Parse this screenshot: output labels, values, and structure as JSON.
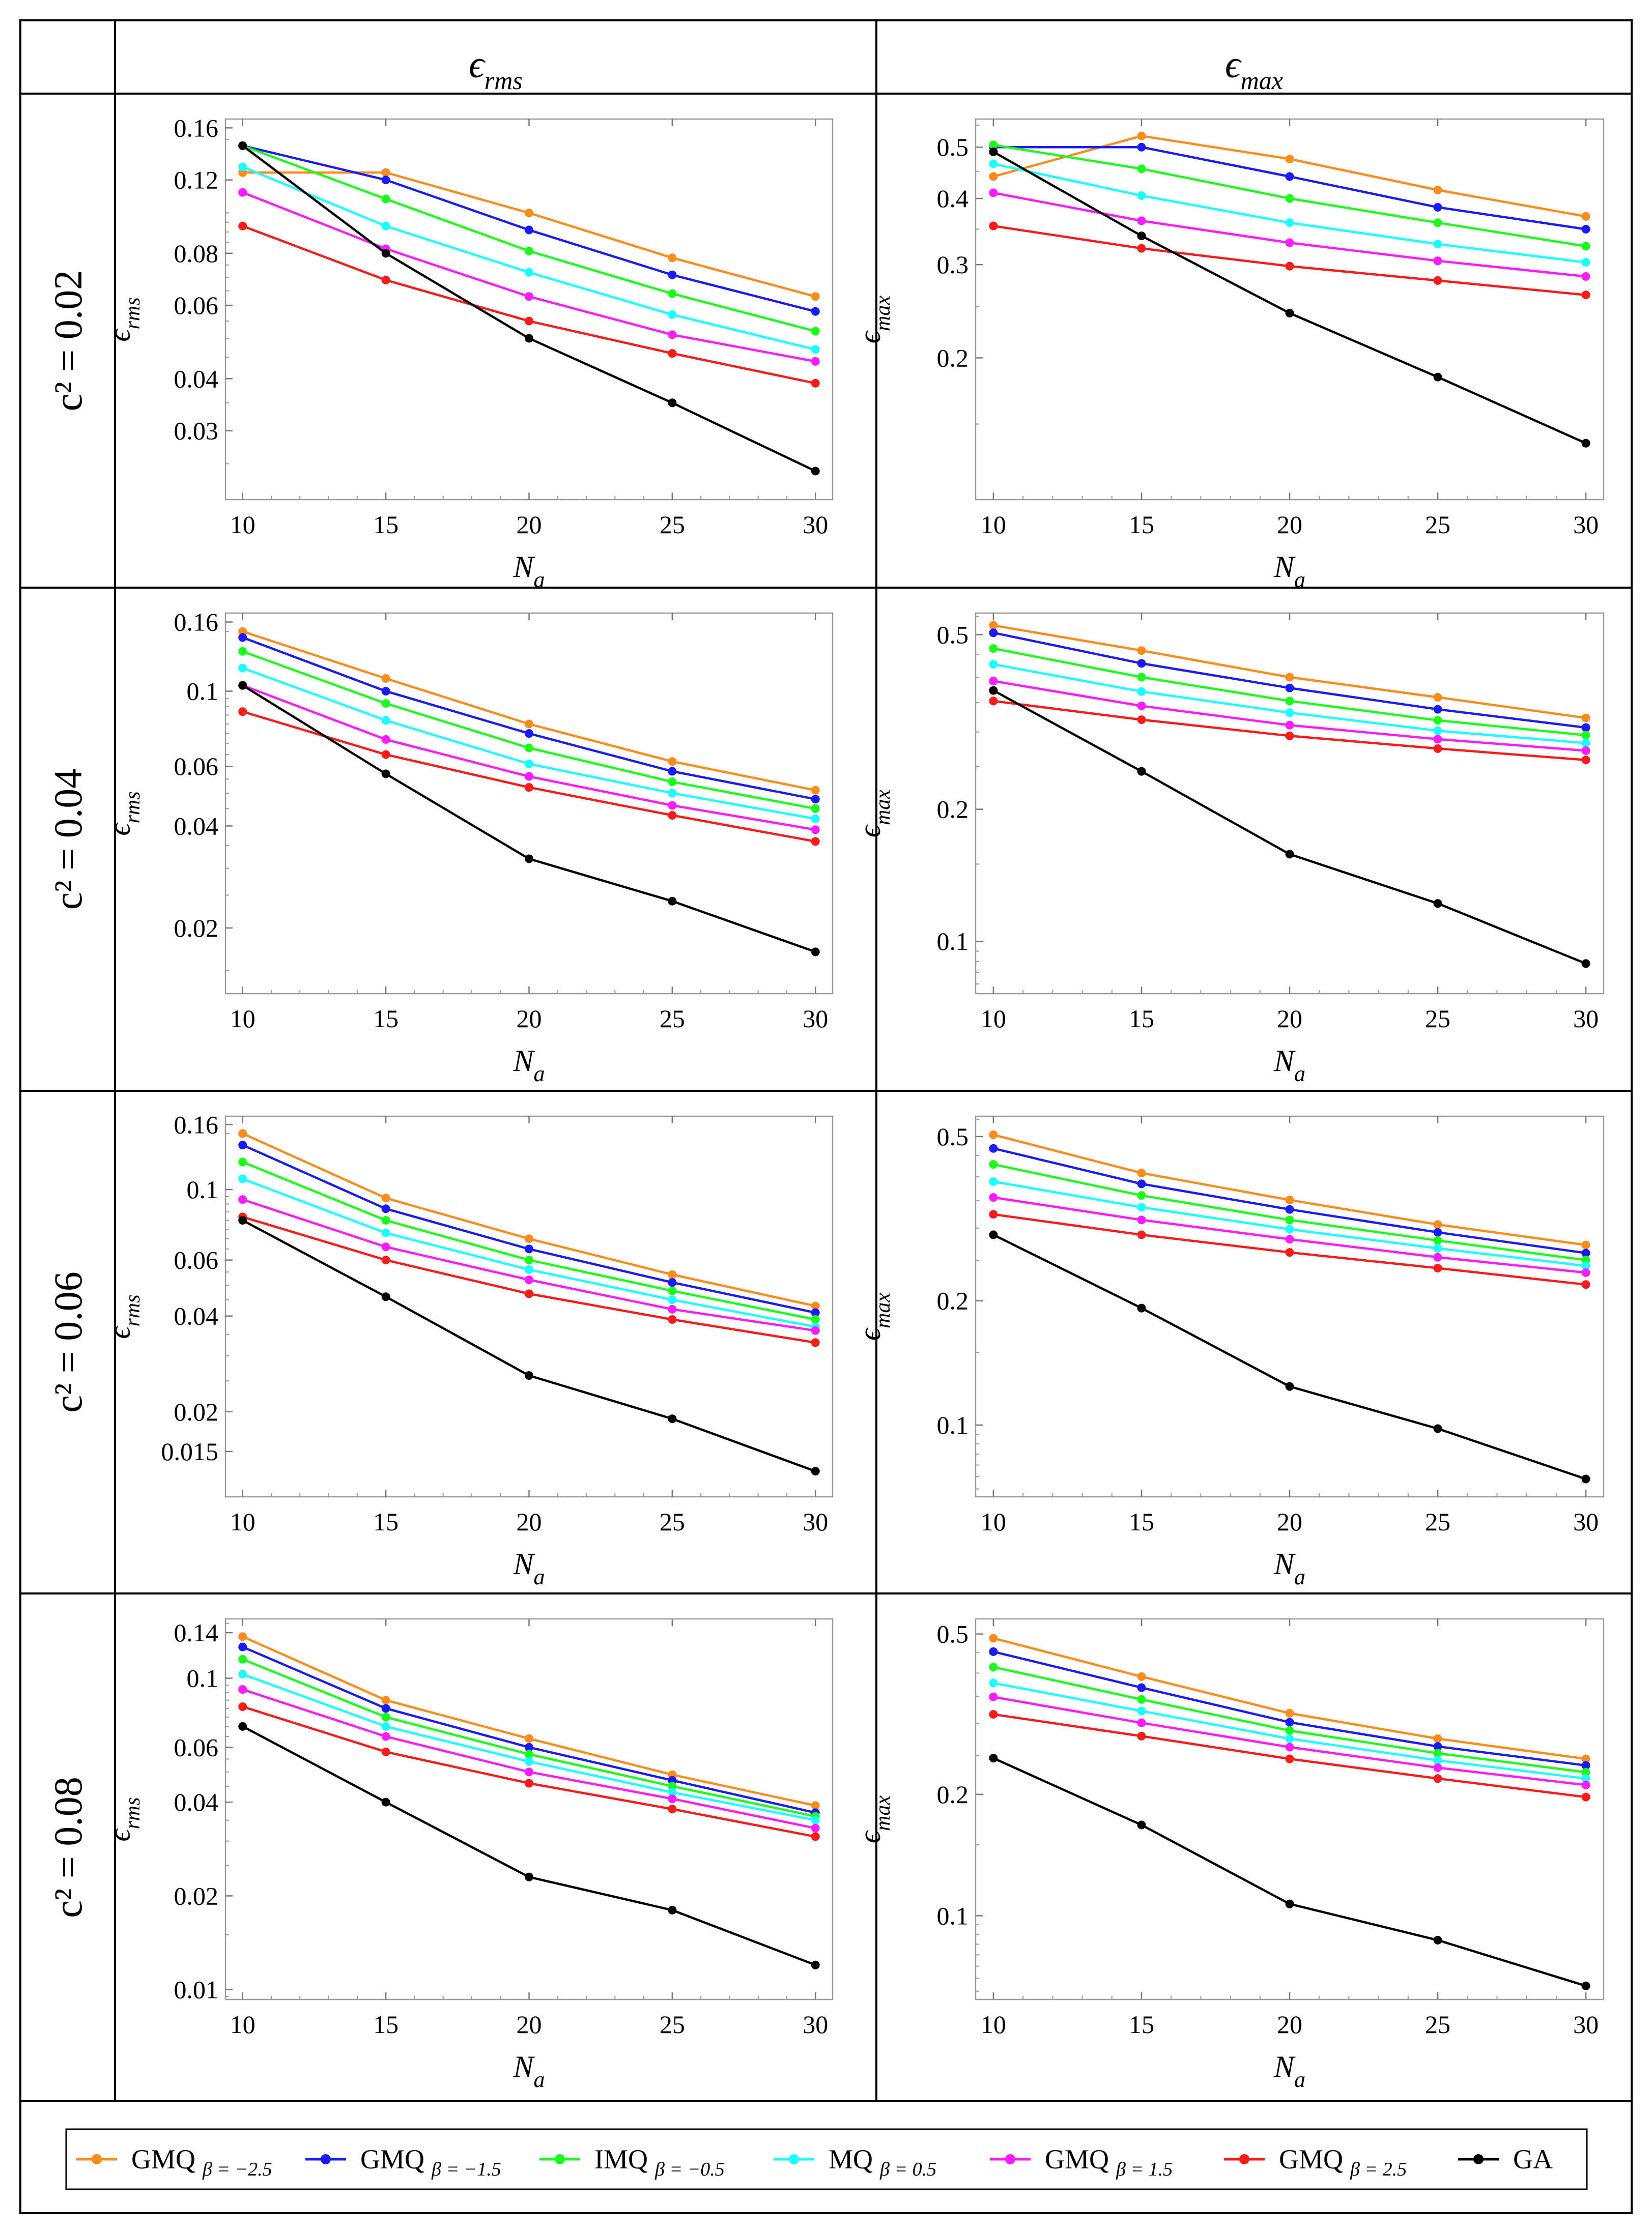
{
  "table": {
    "col_headers": [
      {
        "symbol": "ϵ",
        "sub": "rms"
      },
      {
        "symbol": "ϵ",
        "sub": "max"
      }
    ],
    "row_labels": [
      "c² = 0.02",
      "c² = 0.04",
      "c² = 0.06",
      "c² = 0.08"
    ]
  },
  "legend": [
    {
      "name": "GMQ",
      "param": "β = −2.5",
      "color": "#ff8c1a"
    },
    {
      "name": "GMQ",
      "param": "β = −1.5",
      "color": "#1a1aff"
    },
    {
      "name": "IMQ",
      "param": "β = −0.5",
      "color": "#1aff1a"
    },
    {
      "name": "MQ",
      "param": "β = 0.5",
      "color": "#1affff"
    },
    {
      "name": "GMQ",
      "param": "β = 1.5",
      "color": "#ff1aff"
    },
    {
      "name": "GMQ",
      "param": "β = 2.5",
      "color": "#ff1a1a"
    },
    {
      "name": "GA",
      "param": "",
      "color": "#000000"
    }
  ],
  "chart_data": [
    {
      "type": "line",
      "scale": "log-y",
      "row": 0,
      "col": 0,
      "title": "c² = 0.02, ϵ rms",
      "xlabel": "N",
      "xlabel_sub": "a",
      "ylabel": "ϵ",
      "ylabel_sub": "rms",
      "x": [
        10,
        15,
        20,
        25,
        30
      ],
      "xticks": [
        "10",
        "15",
        "20",
        "25",
        "30"
      ],
      "ylim": [
        0.0205,
        0.168
      ],
      "yticks": [
        {
          "v": 0.03,
          "label": "0.03"
        },
        {
          "v": 0.04,
          "label": "0.04"
        },
        {
          "v": 0.06,
          "label": "0.06"
        },
        {
          "v": 0.08,
          "label": "0.08"
        },
        {
          "v": 0.12,
          "label": "0.12"
        },
        {
          "v": 0.16,
          "label": "0.16"
        }
      ],
      "series": [
        {
          "name": "GMQ β = −2.5",
          "values": [
            0.125,
            0.125,
            0.1,
            0.078,
            0.063
          ]
        },
        {
          "name": "GMQ β = −1.5",
          "values": [
            0.145,
            0.12,
            0.091,
            0.071,
            0.058
          ]
        },
        {
          "name": "IMQ β = −0.5",
          "values": [
            0.145,
            0.108,
            0.081,
            0.064,
            0.052
          ]
        },
        {
          "name": "MQ β = 0.5",
          "values": [
            0.129,
            0.093,
            0.072,
            0.057,
            0.047
          ]
        },
        {
          "name": "GMQ β = 1.5",
          "values": [
            0.112,
            0.082,
            0.063,
            0.051,
            0.044
          ]
        },
        {
          "name": "GMQ β = 2.5",
          "values": [
            0.093,
            0.069,
            0.055,
            0.046,
            0.039
          ]
        },
        {
          "name": "GA",
          "values": [
            0.145,
            0.08,
            0.05,
            0.035,
            0.024
          ]
        }
      ]
    },
    {
      "type": "line",
      "scale": "log-y",
      "row": 0,
      "col": 1,
      "title": "c² = 0.02, ϵ max",
      "xlabel": "N",
      "xlabel_sub": "a",
      "ylabel": "ϵ",
      "ylabel_sub": "max",
      "x": [
        10,
        15,
        20,
        25,
        30
      ],
      "xticks": [
        "10",
        "15",
        "20",
        "25",
        "30"
      ],
      "ylim": [
        0.108,
        0.565
      ],
      "yticks": [
        {
          "v": 0.2,
          "label": "0.2"
        },
        {
          "v": 0.3,
          "label": "0.3"
        },
        {
          "v": 0.4,
          "label": "0.4"
        },
        {
          "v": 0.5,
          "label": "0.5"
        }
      ],
      "series": [
        {
          "name": "GMQ β = −2.5",
          "values": [
            0.44,
            0.525,
            0.475,
            0.415,
            0.37
          ]
        },
        {
          "name": "GMQ β = −1.5",
          "values": [
            0.5,
            0.5,
            0.44,
            0.385,
            0.35
          ]
        },
        {
          "name": "IMQ β = −0.5",
          "values": [
            0.505,
            0.455,
            0.4,
            0.36,
            0.325
          ]
        },
        {
          "name": "MQ β = 0.5",
          "values": [
            0.465,
            0.405,
            0.36,
            0.328,
            0.303
          ]
        },
        {
          "name": "GMQ β = 1.5",
          "values": [
            0.41,
            0.363,
            0.33,
            0.305,
            0.285
          ]
        },
        {
          "name": "GMQ β = 2.5",
          "values": [
            0.355,
            0.322,
            0.298,
            0.28,
            0.263
          ]
        },
        {
          "name": "GA",
          "values": [
            0.49,
            0.34,
            0.243,
            0.184,
            0.138
          ]
        }
      ]
    },
    {
      "type": "line",
      "scale": "log-y",
      "row": 1,
      "col": 0,
      "title": "c² = 0.04, ϵ rms",
      "xlabel": "N",
      "xlabel_sub": "a",
      "ylabel": "ϵ",
      "ylabel_sub": "rms",
      "x": [
        10,
        15,
        20,
        25,
        30
      ],
      "xticks": [
        "10",
        "15",
        "20",
        "25",
        "30"
      ],
      "ylim": [
        0.0128,
        0.17
      ],
      "yticks": [
        {
          "v": 0.02,
          "label": "0.02"
        },
        {
          "v": 0.04,
          "label": "0.04"
        },
        {
          "v": 0.06,
          "label": "0.06"
        },
        {
          "v": 0.1,
          "label": "0.1"
        },
        {
          "v": 0.16,
          "label": "0.16"
        }
      ],
      "series": [
        {
          "name": "GMQ β = −2.5",
          "values": [
            0.15,
            0.109,
            0.08,
            0.062,
            0.051
          ]
        },
        {
          "name": "GMQ β = −1.5",
          "values": [
            0.144,
            0.1,
            0.075,
            0.058,
            0.048
          ]
        },
        {
          "name": "IMQ β = −0.5",
          "values": [
            0.131,
            0.092,
            0.068,
            0.054,
            0.045
          ]
        },
        {
          "name": "MQ β = 0.5",
          "values": [
            0.117,
            0.082,
            0.061,
            0.05,
            0.042
          ]
        },
        {
          "name": "GMQ β = 1.5",
          "values": [
            0.104,
            0.072,
            0.056,
            0.046,
            0.039
          ]
        },
        {
          "name": "GMQ β = 2.5",
          "values": [
            0.087,
            0.065,
            0.052,
            0.043,
            0.036
          ]
        },
        {
          "name": "GA",
          "values": [
            0.104,
            0.057,
            0.032,
            0.024,
            0.017
          ]
        }
      ]
    },
    {
      "type": "line",
      "scale": "log-y",
      "row": 1,
      "col": 1,
      "title": "c² = 0.04, ϵ max",
      "xlabel": "N",
      "xlabel_sub": "a",
      "ylabel": "ϵ",
      "ylabel_sub": "max",
      "x": [
        10,
        15,
        20,
        25,
        30
      ],
      "xticks": [
        "10",
        "15",
        "20",
        "25",
        "30"
      ],
      "ylim": [
        0.076,
        0.56
      ],
      "yticks": [
        {
          "v": 0.1,
          "label": "0.1"
        },
        {
          "v": 0.2,
          "label": "0.2"
        },
        {
          "v": 0.5,
          "label": "0.5"
        }
      ],
      "series": [
        {
          "name": "GMQ β = −2.5",
          "values": [
            0.525,
            0.46,
            0.4,
            0.36,
            0.323
          ]
        },
        {
          "name": "GMQ β = −1.5",
          "values": [
            0.505,
            0.43,
            0.378,
            0.338,
            0.307
          ]
        },
        {
          "name": "IMQ β = −0.5",
          "values": [
            0.465,
            0.4,
            0.353,
            0.319,
            0.295
          ]
        },
        {
          "name": "MQ β = 0.5",
          "values": [
            0.428,
            0.371,
            0.332,
            0.302,
            0.283
          ]
        },
        {
          "name": "GMQ β = 1.5",
          "values": [
            0.392,
            0.344,
            0.311,
            0.289,
            0.272
          ]
        },
        {
          "name": "GMQ β = 2.5",
          "values": [
            0.353,
            0.32,
            0.294,
            0.275,
            0.259
          ]
        },
        {
          "name": "GA",
          "values": [
            0.373,
            0.244,
            0.158,
            0.122,
            0.089
          ]
        }
      ]
    },
    {
      "type": "line",
      "scale": "log-y",
      "row": 2,
      "col": 0,
      "title": "c² = 0.06, ϵ rms",
      "xlabel": "N",
      "xlabel_sub": "a",
      "ylabel": "ϵ",
      "ylabel_sub": "rms",
      "x": [
        10,
        15,
        20,
        25,
        30
      ],
      "xticks": [
        "10",
        "15",
        "20",
        "25",
        "30"
      ],
      "ylim": [
        0.0108,
        0.17
      ],
      "yticks": [
        {
          "v": 0.015,
          "label": "0.015"
        },
        {
          "v": 0.02,
          "label": "0.02"
        },
        {
          "v": 0.04,
          "label": "0.04"
        },
        {
          "v": 0.06,
          "label": "0.06"
        },
        {
          "v": 0.1,
          "label": "0.1"
        },
        {
          "v": 0.16,
          "label": "0.16"
        }
      ],
      "series": [
        {
          "name": "GMQ β = −2.5",
          "values": [
            0.15,
            0.094,
            0.07,
            0.054,
            0.043
          ]
        },
        {
          "name": "GMQ β = −1.5",
          "values": [
            0.138,
            0.087,
            0.065,
            0.051,
            0.041
          ]
        },
        {
          "name": "IMQ β = −0.5",
          "values": [
            0.122,
            0.08,
            0.06,
            0.048,
            0.039
          ]
        },
        {
          "name": "MQ β = 0.5",
          "values": [
            0.108,
            0.073,
            0.056,
            0.045,
            0.037
          ]
        },
        {
          "name": "GMQ β = 1.5",
          "values": [
            0.093,
            0.066,
            0.052,
            0.042,
            0.036
          ]
        },
        {
          "name": "GMQ β = 2.5",
          "values": [
            0.082,
            0.06,
            0.047,
            0.039,
            0.033
          ]
        },
        {
          "name": "GA",
          "values": [
            0.08,
            0.046,
            0.026,
            0.019,
            0.013
          ]
        }
      ]
    },
    {
      "type": "line",
      "scale": "log-y",
      "row": 2,
      "col": 1,
      "title": "c² = 0.06, ϵ max",
      "xlabel": "N",
      "xlabel_sub": "a",
      "ylabel": "ϵ",
      "ylabel_sub": "max",
      "x": [
        10,
        15,
        20,
        25,
        30
      ],
      "xticks": [
        "10",
        "15",
        "20",
        "25",
        "30"
      ],
      "ylim": [
        0.067,
        0.56
      ],
      "yticks": [
        {
          "v": 0.1,
          "label": "0.1"
        },
        {
          "v": 0.2,
          "label": "0.2"
        },
        {
          "v": 0.5,
          "label": "0.5"
        }
      ],
      "series": [
        {
          "name": "GMQ β = −2.5",
          "values": [
            0.505,
            0.408,
            0.351,
            0.306,
            0.273
          ]
        },
        {
          "name": "GMQ β = −1.5",
          "values": [
            0.468,
            0.384,
            0.333,
            0.293,
            0.261
          ]
        },
        {
          "name": "IMQ β = −0.5",
          "values": [
            0.428,
            0.36,
            0.314,
            0.28,
            0.251
          ]
        },
        {
          "name": "MQ β = 0.5",
          "values": [
            0.389,
            0.337,
            0.298,
            0.268,
            0.243
          ]
        },
        {
          "name": "GMQ β = 1.5",
          "values": [
            0.356,
            0.314,
            0.282,
            0.255,
            0.234
          ]
        },
        {
          "name": "GMQ β = 2.5",
          "values": [
            0.324,
            0.289,
            0.262,
            0.24,
            0.219
          ]
        },
        {
          "name": "GA",
          "values": [
            0.289,
            0.192,
            0.124,
            0.098,
            0.074
          ]
        }
      ]
    },
    {
      "type": "line",
      "scale": "log-y",
      "row": 3,
      "col": 0,
      "title": "c² = 0.08, ϵ rms",
      "xlabel": "N",
      "xlabel_sub": "a",
      "ylabel": "ϵ",
      "ylabel_sub": "rms",
      "x": [
        10,
        15,
        20,
        25,
        30
      ],
      "xticks": [
        "10",
        "15",
        "20",
        "25",
        "30"
      ],
      "ylim": [
        0.0093,
        0.155
      ],
      "yticks": [
        {
          "v": 0.01,
          "label": "0.01"
        },
        {
          "v": 0.02,
          "label": "0.02"
        },
        {
          "v": 0.04,
          "label": "0.04"
        },
        {
          "v": 0.06,
          "label": "0.06"
        },
        {
          "v": 0.1,
          "label": "0.1"
        },
        {
          "v": 0.14,
          "label": "0.14"
        }
      ],
      "series": [
        {
          "name": "GMQ β = −2.5",
          "values": [
            0.136,
            0.085,
            0.064,
            0.049,
            0.039
          ]
        },
        {
          "name": "GMQ β = −1.5",
          "values": [
            0.126,
            0.08,
            0.06,
            0.047,
            0.037
          ]
        },
        {
          "name": "IMQ β = −0.5",
          "values": [
            0.115,
            0.075,
            0.057,
            0.045,
            0.036
          ]
        },
        {
          "name": "MQ β = 0.5",
          "values": [
            0.103,
            0.07,
            0.054,
            0.043,
            0.035
          ]
        },
        {
          "name": "GMQ β = 1.5",
          "values": [
            0.092,
            0.065,
            0.05,
            0.041,
            0.033
          ]
        },
        {
          "name": "GMQ β = 2.5",
          "values": [
            0.081,
            0.058,
            0.046,
            0.038,
            0.031
          ]
        },
        {
          "name": "GA",
          "values": [
            0.07,
            0.04,
            0.023,
            0.018,
            0.012
          ]
        }
      ]
    },
    {
      "type": "line",
      "scale": "log-y",
      "row": 3,
      "col": 1,
      "title": "c² = 0.08, ϵ max",
      "xlabel": "N",
      "xlabel_sub": "a",
      "ylabel": "ϵ",
      "ylabel_sub": "max",
      "x": [
        10,
        15,
        20,
        25,
        30
      ],
      "xticks": [
        "10",
        "15",
        "20",
        "25",
        "30"
      ],
      "ylim": [
        0.062,
        0.545
      ],
      "yticks": [
        {
          "v": 0.1,
          "label": "0.1"
        },
        {
          "v": 0.2,
          "label": "0.2"
        },
        {
          "v": 0.5,
          "label": "0.5"
        }
      ],
      "series": [
        {
          "name": "GMQ β = −2.5",
          "values": [
            0.488,
            0.392,
            0.318,
            0.275,
            0.245
          ]
        },
        {
          "name": "GMQ β = −1.5",
          "values": [
            0.452,
            0.368,
            0.302,
            0.263,
            0.236
          ]
        },
        {
          "name": "IMQ β = −0.5",
          "values": [
            0.414,
            0.344,
            0.288,
            0.253,
            0.227
          ]
        },
        {
          "name": "MQ β = 0.5",
          "values": [
            0.378,
            0.322,
            0.275,
            0.243,
            0.219
          ]
        },
        {
          "name": "GMQ β = 1.5",
          "values": [
            0.349,
            0.301,
            0.262,
            0.233,
            0.211
          ]
        },
        {
          "name": "GMQ β = 2.5",
          "values": [
            0.316,
            0.279,
            0.245,
            0.219,
            0.197
          ]
        },
        {
          "name": "GA",
          "values": [
            0.246,
            0.168,
            0.107,
            0.087,
            0.067
          ]
        }
      ]
    }
  ]
}
